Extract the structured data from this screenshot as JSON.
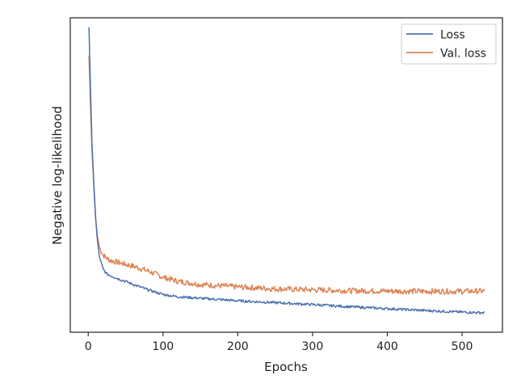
{
  "chart_data": {
    "type": "line",
    "title": "",
    "xlabel": "Epochs",
    "ylabel": "Negative log-likelihood",
    "xlim": [
      -24,
      554
    ],
    "ylim": [
      0,
      1
    ],
    "x_ticks": [
      0,
      100,
      200,
      300,
      400,
      500
    ],
    "x_tick_labels": [
      "0",
      "100",
      "200",
      "300",
      "400",
      "500"
    ],
    "y_ticks_labeled": false,
    "grid": false,
    "legend": {
      "placement": "top-right"
    },
    "series": [
      {
        "name": "Loss",
        "color": "#4c72b0",
        "x": [
          1,
          3,
          5,
          8,
          10,
          12,
          15,
          20,
          25,
          30,
          40,
          50,
          60,
          80,
          100,
          120,
          150,
          200,
          250,
          300,
          350,
          400,
          450,
          500,
          530
        ],
        "y": [
          0.97,
          0.78,
          0.6,
          0.45,
          0.36,
          0.3,
          0.24,
          0.2,
          0.185,
          0.18,
          0.17,
          0.162,
          0.152,
          0.135,
          0.12,
          0.113,
          0.108,
          0.1,
          0.094,
          0.088,
          0.081,
          0.075,
          0.069,
          0.064,
          0.062
        ]
      },
      {
        "name": "Val. loss",
        "color": "#dd8452",
        "x": [
          1,
          3,
          5,
          8,
          10,
          12,
          15,
          20,
          25,
          30,
          40,
          50,
          60,
          80,
          100,
          120,
          150,
          200,
          250,
          300,
          350,
          400,
          450,
          500,
          530
        ],
        "y": [
          0.88,
          0.72,
          0.58,
          0.44,
          0.36,
          0.31,
          0.27,
          0.245,
          0.235,
          0.228,
          0.222,
          0.216,
          0.21,
          0.195,
          0.175,
          0.162,
          0.152,
          0.144,
          0.138,
          0.135,
          0.132,
          0.131,
          0.13,
          0.13,
          0.131
        ]
      }
    ]
  }
}
